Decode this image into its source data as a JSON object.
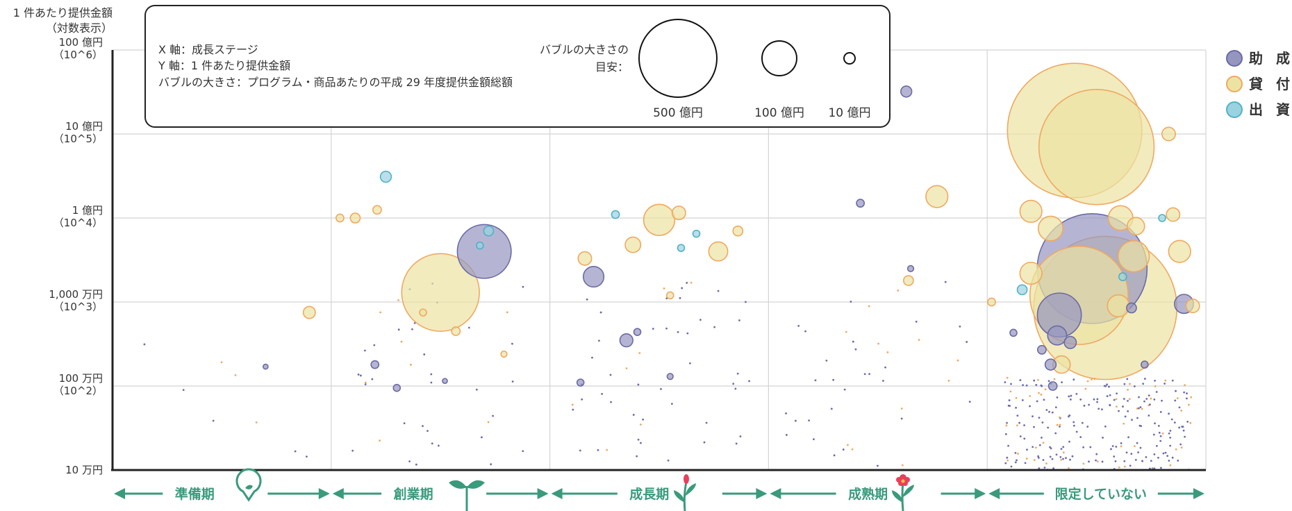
{
  "chart_data": {
    "type": "scatter",
    "title": "",
    "ylabel_line1": "1 件あたり提供金額",
    "ylabel_line2": "（対数表示）",
    "y_scale": "log",
    "ylim": [
      100000,
      10000000000
    ],
    "y_ticks": [
      {
        "value": 10000000000,
        "label": "100 億円",
        "sub": "（10^6）"
      },
      {
        "value": 1000000000,
        "label": "10 億円",
        "sub": "（10^5）"
      },
      {
        "value": 100000000,
        "label": "1 億円",
        "sub": "（10^4）"
      },
      {
        "value": 10000000,
        "label": "1,000 万円",
        "sub": "（10^3）"
      },
      {
        "value": 1000000,
        "label": "100 万円",
        "sub": "（10^2）"
      },
      {
        "value": 100000,
        "label": "10 万円",
        "sub": ""
      }
    ],
    "categories": [
      "準備期",
      "創業期",
      "成長期",
      "成熟期",
      "限定していない"
    ],
    "info_box": {
      "line1": "X 軸：成長ステージ",
      "line2": "Y 軸：1 件あたり提供金額",
      "line3": "バブルの大きさ：プログラム・商品あたりの平成 29 年度提供金額総額",
      "size_guide_line1": "バブルの大きさの",
      "size_guide_line2": "目安：",
      "sizes": [
        {
          "label": "500 億円",
          "amount_oku": 500
        },
        {
          "label": "100 億円",
          "amount_oku": 100
        },
        {
          "label": "10 億円",
          "amount_oku": 10
        }
      ]
    },
    "legend": [
      {
        "label": "助 成",
        "fill": "#9595c0",
        "stroke": "#6a6aa6"
      },
      {
        "label": "貸 付",
        "fill": "#ece3a3",
        "stroke": "#f0a860"
      },
      {
        "label": "出 資",
        "fill": "#9bd2df",
        "stroke": "#4fb2c7"
      }
    ],
    "series": [
      {
        "name": "助 成",
        "points": [
          {
            "stage": 1,
            "x": 0.7,
            "y": 40000000,
            "size": 240
          },
          {
            "stage": 1,
            "x": 0.2,
            "y": 1800000,
            "size": 5
          },
          {
            "stage": 1,
            "x": 0.3,
            "y": 950000,
            "size": 4
          },
          {
            "stage": 1,
            "x": 0.52,
            "y": 1150000,
            "size": 2
          },
          {
            "stage": 0,
            "x": 0.7,
            "y": 1700000,
            "size": 2
          },
          {
            "stage": 2,
            "x": 0.2,
            "y": 20000000,
            "size": 35
          },
          {
            "stage": 2,
            "x": 0.35,
            "y": 3500000,
            "size": 14
          },
          {
            "stage": 2,
            "x": 0.14,
            "y": 1100000,
            "size": 4
          },
          {
            "stage": 2,
            "x": 0.4,
            "y": 4400000,
            "size": 4
          },
          {
            "stage": 2,
            "x": 0.55,
            "y": 1300000,
            "size": 3
          },
          {
            "stage": 3,
            "x": 0.63,
            "y": 3200000000,
            "size": 10
          },
          {
            "stage": 3,
            "x": 0.42,
            "y": 150000000,
            "size": 5
          },
          {
            "stage": 3,
            "x": 0.65,
            "y": 25000000,
            "size": 3
          },
          {
            "stage": 4,
            "x": 0.48,
            "y": 25000000,
            "size": 1000
          },
          {
            "stage": 4,
            "x": 0.33,
            "y": 7000000,
            "size": 160
          },
          {
            "stage": 4,
            "x": 0.32,
            "y": 4000000,
            "size": 30
          },
          {
            "stage": 4,
            "x": 0.38,
            "y": 3300000,
            "size": 12
          },
          {
            "stage": 4,
            "x": 0.29,
            "y": 1800000,
            "size": 10
          },
          {
            "stage": 4,
            "x": 0.9,
            "y": 9500000,
            "size": 30
          },
          {
            "stage": 4,
            "x": 0.66,
            "y": 8500000,
            "size": 8
          },
          {
            "stage": 4,
            "x": 0.25,
            "y": 2700000,
            "size": 6
          },
          {
            "stage": 4,
            "x": 0.12,
            "y": 4300000,
            "size": 4
          },
          {
            "stage": 4,
            "x": 0.72,
            "y": 1800000,
            "size": 4
          },
          {
            "stage": 4,
            "x": 0.3,
            "y": 1000000,
            "size": 6
          }
        ]
      },
      {
        "name": "貸 付",
        "points": [
          {
            "stage": 4,
            "x": 0.4,
            "y": 1100000000,
            "size": 1500
          },
          {
            "stage": 4,
            "x": 0.5,
            "y": 700000000,
            "size": 1100
          },
          {
            "stage": 4,
            "x": 0.54,
            "y": 8500000,
            "size": 1700
          },
          {
            "stage": 4,
            "x": 0.42,
            "y": 12000000,
            "size": 800
          },
          {
            "stage": 4,
            "x": 0.2,
            "y": 22000000,
            "size": 40
          },
          {
            "stage": 4,
            "x": 0.2,
            "y": 120000000,
            "size": 40
          },
          {
            "stage": 4,
            "x": 0.29,
            "y": 75000000,
            "size": 50
          },
          {
            "stage": 4,
            "x": 0.67,
            "y": 35000000,
            "size": 80
          },
          {
            "stage": 4,
            "x": 0.88,
            "y": 40000000,
            "size": 40
          },
          {
            "stage": 4,
            "x": 0.85,
            "y": 110000000,
            "size": 15
          },
          {
            "stage": 4,
            "x": 0.68,
            "y": 80000000,
            "size": 25
          },
          {
            "stage": 4,
            "x": 0.83,
            "y": 1000000000,
            "size": 15
          },
          {
            "stage": 4,
            "x": 0.61,
            "y": 100000000,
            "size": 50
          },
          {
            "stage": 4,
            "x": 0.6,
            "y": 9000000,
            "size": 40
          },
          {
            "stage": 4,
            "x": 0.94,
            "y": 9000000,
            "size": 15
          },
          {
            "stage": 4,
            "x": 0.34,
            "y": 1800000,
            "size": 25
          },
          {
            "stage": 4,
            "x": 0.02,
            "y": 10000000,
            "size": 5
          },
          {
            "stage": 2,
            "x": 0.5,
            "y": 95000000,
            "size": 80
          },
          {
            "stage": 2,
            "x": 0.77,
            "y": 40000000,
            "size": 30
          },
          {
            "stage": 2,
            "x": 0.38,
            "y": 48000000,
            "size": 20
          },
          {
            "stage": 2,
            "x": 0.59,
            "y": 115000000,
            "size": 15
          },
          {
            "stage": 2,
            "x": 0.16,
            "y": 33000000,
            "size": 15
          },
          {
            "stage": 2,
            "x": 0.86,
            "y": 70000000,
            "size": 8
          },
          {
            "stage": 2,
            "x": 0.55,
            "y": 12000000,
            "size": 4
          },
          {
            "stage": 1,
            "x": 0.5,
            "y": 13000000,
            "size": 500
          },
          {
            "stage": 1,
            "x": 0.04,
            "y": 100000000,
            "size": 5
          },
          {
            "stage": 1,
            "x": 0.11,
            "y": 100000000,
            "size": 8
          },
          {
            "stage": 1,
            "x": 0.21,
            "y": 125000000,
            "size": 6
          },
          {
            "stage": 1,
            "x": 0.57,
            "y": 4500000,
            "size": 6
          },
          {
            "stage": 1,
            "x": 0.42,
            "y": 7500000,
            "size": 4
          },
          {
            "stage": 1,
            "x": 0.79,
            "y": 2400000,
            "size": 3
          },
          {
            "stage": 0,
            "x": 0.9,
            "y": 7500000,
            "size": 12
          },
          {
            "stage": 3,
            "x": 0.77,
            "y": 180000000,
            "size": 40
          },
          {
            "stage": 3,
            "x": 0.64,
            "y": 18000000,
            "size": 8
          }
        ]
      },
      {
        "name": "出 資",
        "points": [
          {
            "stage": 1,
            "x": 0.25,
            "y": 310000000,
            "size": 10
          },
          {
            "stage": 1,
            "x": 0.72,
            "y": 70000000,
            "size": 8
          },
          {
            "stage": 1,
            "x": 0.68,
            "y": 47000000,
            "size": 4
          },
          {
            "stage": 2,
            "x": 0.3,
            "y": 110000000,
            "size": 5
          },
          {
            "stage": 2,
            "x": 0.6,
            "y": 44000000,
            "size": 4
          },
          {
            "stage": 2,
            "x": 0.67,
            "y": 65000000,
            "size": 4
          },
          {
            "stage": 4,
            "x": 0.16,
            "y": 14000000,
            "size": 8
          },
          {
            "stage": 4,
            "x": 0.62,
            "y": 20000000,
            "size": 5
          },
          {
            "stage": 4,
            "x": 0.8,
            "y": 100000000,
            "size": 4
          }
        ]
      }
    ]
  }
}
